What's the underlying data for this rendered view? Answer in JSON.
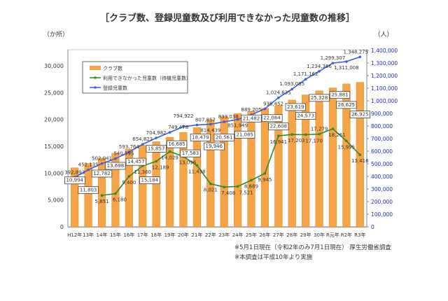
{
  "chart_data": {
    "type": "bar",
    "title": "［クラブ数、登録児童数及び利用できなかった児童数の推移］",
    "left_unit": "（か所）",
    "right_unit": "（人）",
    "categories": [
      "H12年",
      "13年",
      "14年",
      "15年",
      "16年",
      "17年",
      "18年",
      "19年",
      "20年",
      "21年",
      "22年",
      "23年",
      "24年",
      "25年",
      "26年",
      "27年",
      "28年",
      "29年",
      "30年",
      "R元年",
      "R2年",
      "R3年"
    ],
    "left_axis": {
      "range": [
        0,
        30000
      ],
      "ticks": [
        "0",
        "5,000",
        "10,000",
        "15,000",
        "20,000",
        "25,000",
        "30,000"
      ]
    },
    "right_axis": {
      "range": [
        0,
        1400000
      ],
      "ticks": [
        "0",
        "100,000",
        "200,000",
        "300,000",
        "400,000",
        "500,000",
        "600,000",
        "700,000",
        "800,000",
        "900,000",
        "1,000,000",
        "1,100,000",
        "1,200,000",
        "1,300,000",
        "1,400,000"
      ]
    },
    "legend_placement": "top-left",
    "series": [
      {
        "name": "クラブ数",
        "type": "bar",
        "axis": "left",
        "color": "#f5a447",
        "values": [
          10994,
          11803,
          12782,
          13698,
          14457,
          15184,
          15857,
          16685,
          17583,
          18479,
          19946,
          20561,
          21085,
          21482,
          22084,
          22608,
          23619,
          24573,
          25328,
          25881,
          26625,
          26925
        ],
        "labels": [
          "10,994",
          "11,803",
          "12,782",
          "13,698",
          "14,457",
          "15,184",
          "15,857",
          "16,685",
          "17,583",
          "18,479",
          "19,946",
          "20,561",
          "21,085",
          "21,482",
          "22,084",
          "22,608",
          "23,619",
          "24,573",
          "25,328",
          "25,881",
          "26,625",
          "26,925"
        ]
      },
      {
        "name": "利用できなかった児童数（待機児童数）",
        "type": "line",
        "axis": "left",
        "color": "#2e8b2e",
        "values": [
          null,
          null,
          5851,
          6180,
          9400,
          11360,
          12189,
          14029,
          13096,
          11438,
          8021,
          7408,
          7521,
          8689,
          9945,
          16941,
          17203,
          17170,
          17279,
          18261,
          15995,
          13416
        ],
        "labels": [
          null,
          null,
          "5,851",
          "6,180",
          "9,400",
          "11,360",
          "12,189",
          "14,029",
          "13,096",
          "11,438",
          "8,021",
          "7,408",
          "7,521",
          "8,689",
          "9,945",
          "16,941",
          "17,203",
          "17,170",
          "17,279",
          "18,261",
          "15,995",
          "13,416"
        ]
      },
      {
        "name": "登録児童数",
        "type": "line",
        "axis": "right",
        "color": "#3b5fe0",
        "values": [
          392893,
          452135,
          502041,
          540595,
          593764,
          654823,
          704982,
          749478,
          794922,
          807857,
          814439,
          833038,
          851949,
          889205,
          936452,
          1024635,
          1093085,
          1171162,
          1234366,
          1299307,
          1311008,
          1348275
        ],
        "labels": [
          "392,893",
          "452,135",
          "502,041",
          "540,595",
          "593,764",
          "654,823",
          "704,982",
          "749,478",
          "794,922",
          "807,857",
          "814,439",
          "833,038",
          "851,949",
          "889,205",
          "936,452",
          "1,024,635",
          "1,093,085",
          "1,171,162",
          "1,234,366",
          "1,299,307",
          "1,311,008",
          "1,348,275"
        ]
      }
    ]
  },
  "footnotes": [
    "※5月1日現在（令和2年のみ7月1日現在） 厚生労働省調査",
    "※本調査は平成10年より実施"
  ]
}
